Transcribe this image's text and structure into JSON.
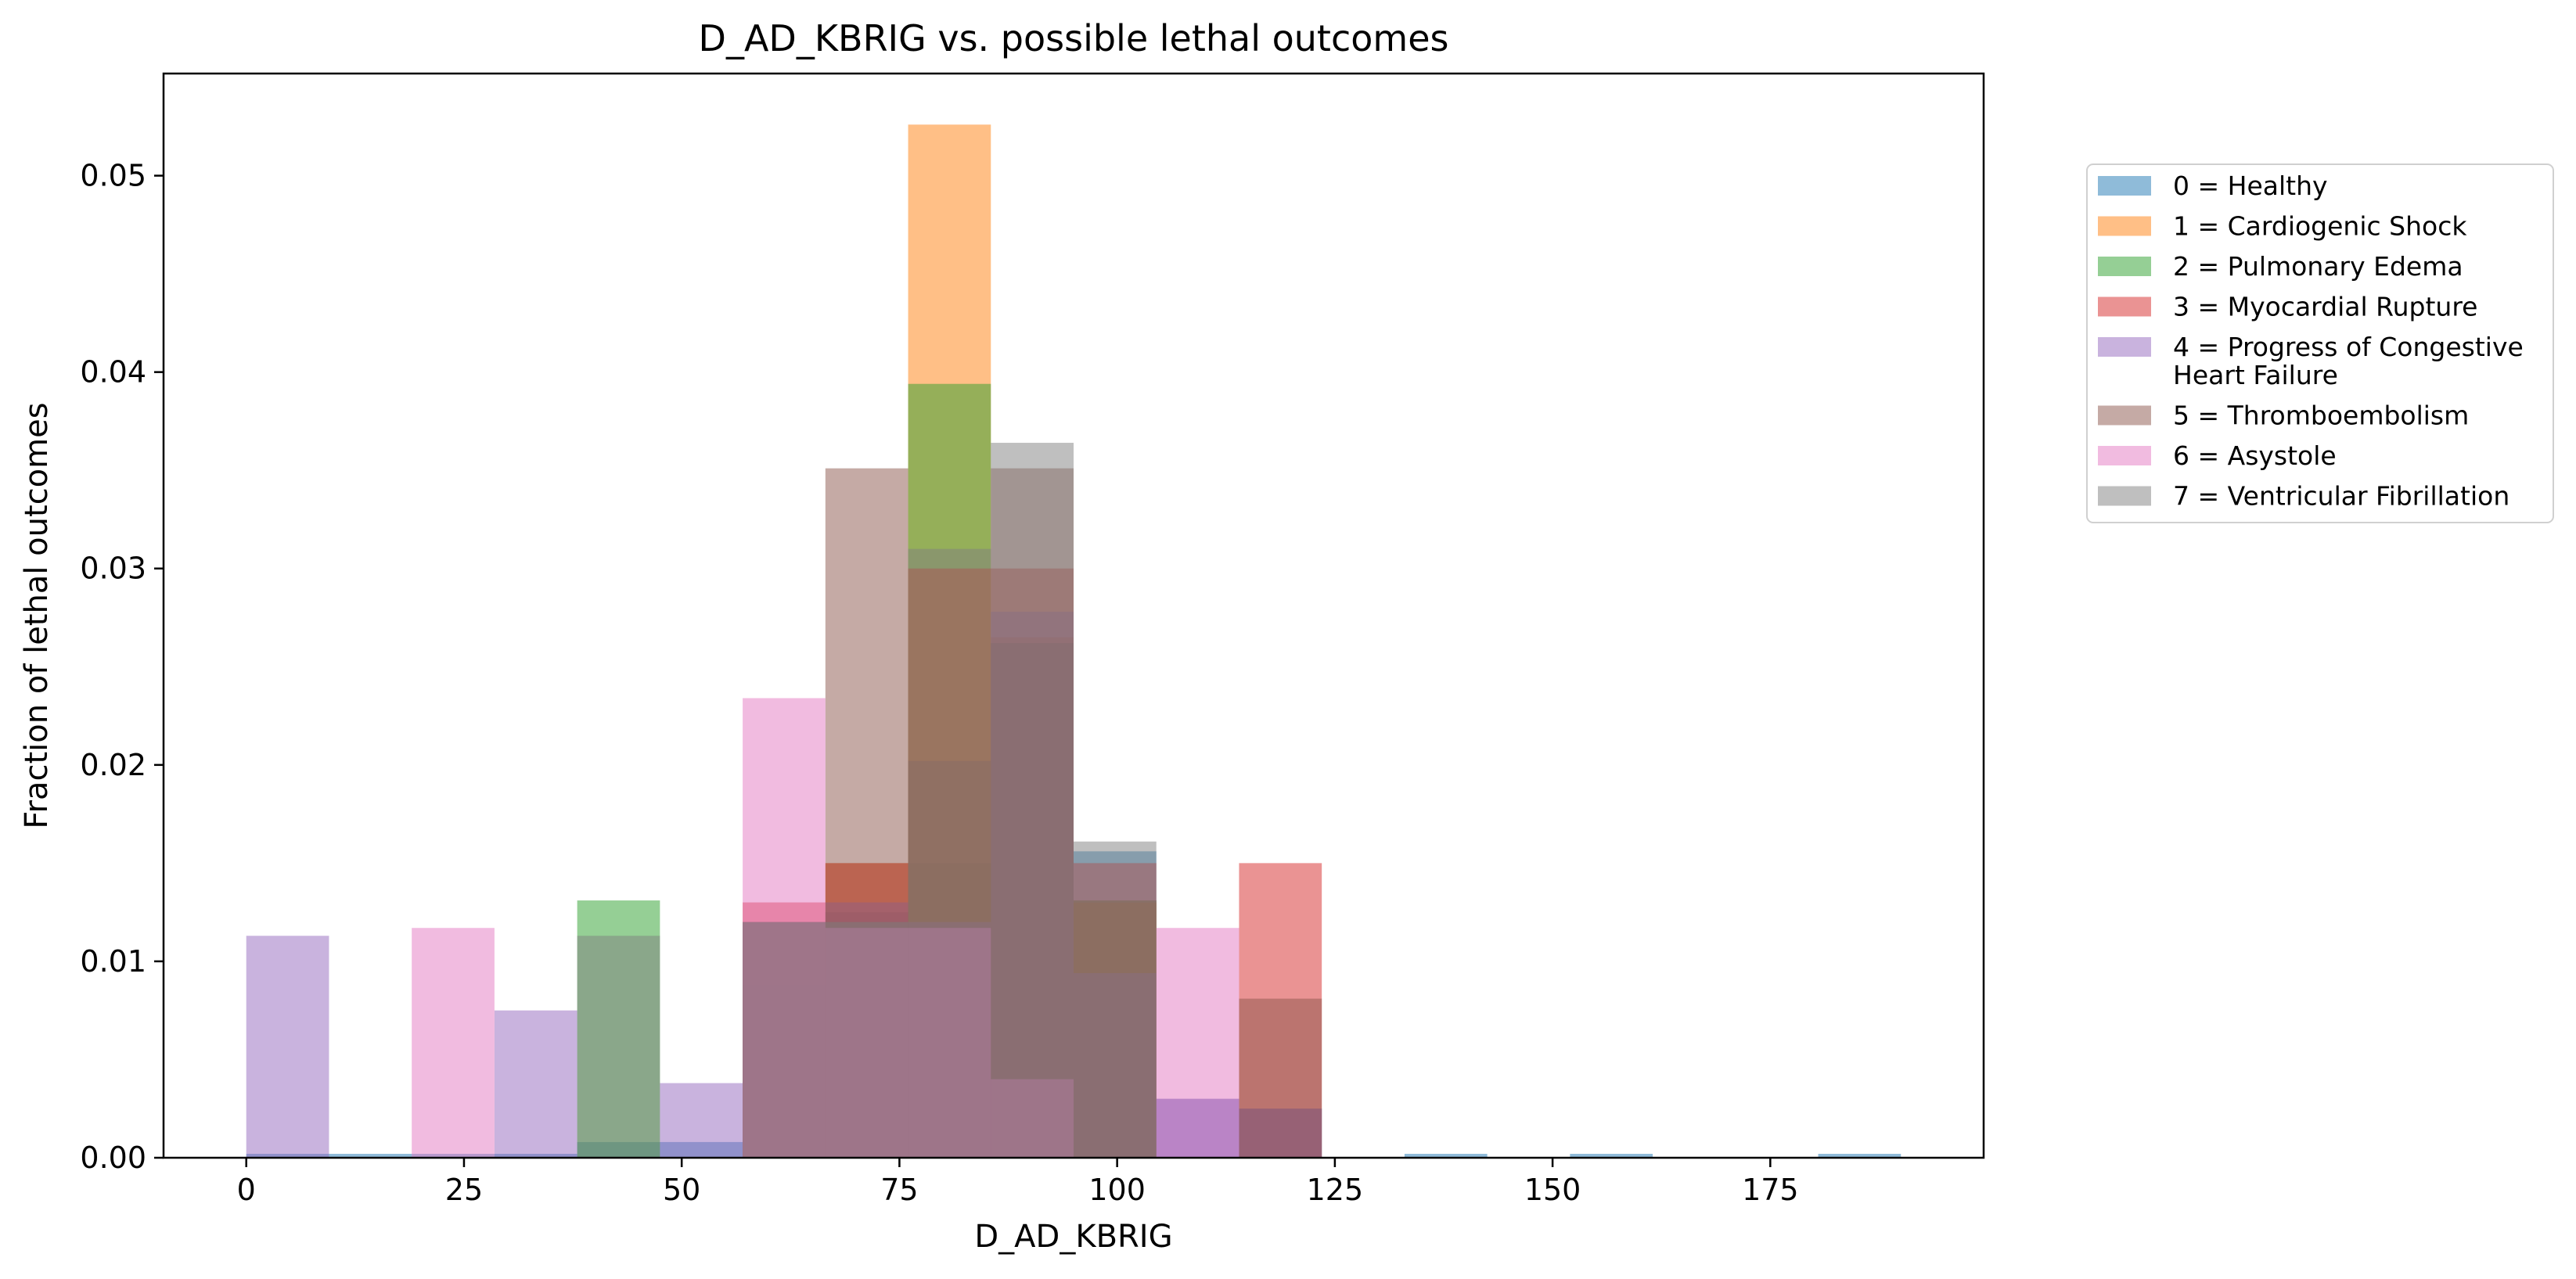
{
  "chart_data": {
    "type": "bar",
    "subtype": "overlaid-histogram",
    "title": "D_AD_KBRIG vs. possible lethal outcomes",
    "xlabel": "D_AD_KBRIG",
    "ylabel": "Fraction of lethal outcomes",
    "xlim": [
      -9.5,
      199.5
    ],
    "ylim": [
      0,
      0.0552
    ],
    "x_ticks": [
      0,
      25,
      50,
      75,
      100,
      125,
      150,
      175
    ],
    "x_tick_labels": [
      "0",
      "25",
      "50",
      "75",
      "100",
      "125",
      "150",
      "175"
    ],
    "y_ticks": [
      0.0,
      0.01,
      0.02,
      0.03,
      0.04,
      0.05
    ],
    "y_tick_labels": [
      "0.00",
      "0.01",
      "0.02",
      "0.03",
      "0.04",
      "0.05"
    ],
    "grid": false,
    "legend_position": "outside-right-top",
    "bar_opacity": 0.5,
    "bin_edges": [
      0,
      9.5,
      19,
      28.5,
      38,
      47.5,
      57,
      66.5,
      76,
      85.5,
      95,
      104.5,
      114,
      123.5,
      133,
      142.5,
      152,
      161.5,
      171,
      180.5,
      190
    ],
    "series": [
      {
        "name": "0 = Healthy",
        "legend_lines": [
          "0 = Healthy"
        ],
        "color": "#1f77b4",
        "values": [
          0.0002,
          0.0002,
          0.0002,
          0.0002,
          0.0008,
          0.0008,
          0.0088,
          0.0125,
          0.015,
          0.0262,
          0.0156,
          0.003,
          0.0025,
          0,
          0.0002,
          0,
          0.0002,
          0,
          0,
          0.0002
        ]
      },
      {
        "name": "1 = Cardiogenic Shock",
        "legend_lines": [
          "1 = Cardiogenic Shock"
        ],
        "color": "#ff7f0e",
        "values": [
          0,
          0,
          0,
          0,
          0,
          0,
          0.012,
          0.015,
          0.0526,
          0.0265,
          0.013,
          0,
          0,
          0,
          0,
          0,
          0,
          0,
          0,
          0
        ]
      },
      {
        "name": "2 = Pulmonary Edema",
        "legend_lines": [
          "2 = Pulmonary Edema"
        ],
        "color": "#2ca02c",
        "values": [
          0,
          0,
          0,
          0,
          0.0131,
          0,
          0.012,
          0.012,
          0.0394,
          0.0262,
          0.0131,
          0,
          0,
          0,
          0,
          0,
          0,
          0,
          0,
          0
        ]
      },
      {
        "name": "3 = Myocardial Rupture",
        "legend_lines": [
          "3 = Myocardial Rupture"
        ],
        "color": "#d62728",
        "values": [
          0,
          0,
          0,
          0,
          0,
          0,
          0.013,
          0.015,
          0.03,
          0.03,
          0.015,
          0,
          0.015,
          0,
          0,
          0,
          0,
          0,
          0,
          0
        ]
      },
      {
        "name": "4 = Progress of Congestive Heart Failure",
        "legend_lines": [
          "4 = Progress of Congestive",
          "Heart Failure"
        ],
        "color": "#9467bd",
        "values": [
          0.0113,
          0,
          0,
          0.0075,
          0,
          0.0038,
          0.012,
          0.013,
          0.012,
          0.0278,
          0.0094,
          0.003,
          0.0025,
          0,
          0,
          0,
          0,
          0,
          0,
          0
        ]
      },
      {
        "name": "5 = Thromboembolism",
        "legend_lines": [
          "5 = Thromboembolism"
        ],
        "color": "#8c564b",
        "values": [
          0,
          0,
          0,
          0,
          0,
          0,
          0.012,
          0.0351,
          0.0202,
          0.0351,
          0.0131,
          0,
          0.0081,
          0,
          0,
          0,
          0,
          0,
          0,
          0
        ]
      },
      {
        "name": "6 = Asystole",
        "legend_lines": [
          "6 = Asystole"
        ],
        "color": "#e377c2",
        "values": [
          0,
          0,
          0.0117,
          0,
          0,
          0,
          0.0234,
          0.0117,
          0.0117,
          0.004,
          0,
          0.0117,
          0,
          0,
          0,
          0,
          0,
          0,
          0,
          0
        ]
      },
      {
        "name": "7 = Ventricular Fibrillation",
        "legend_lines": [
          "7 = Ventricular Fibrillation"
        ],
        "color": "#7f7f7f",
        "values": [
          0,
          0,
          0,
          0,
          0.0113,
          0,
          0.012,
          0.012,
          0.031,
          0.0364,
          0.0161,
          0,
          0,
          0,
          0,
          0,
          0,
          0,
          0,
          0
        ]
      }
    ]
  }
}
